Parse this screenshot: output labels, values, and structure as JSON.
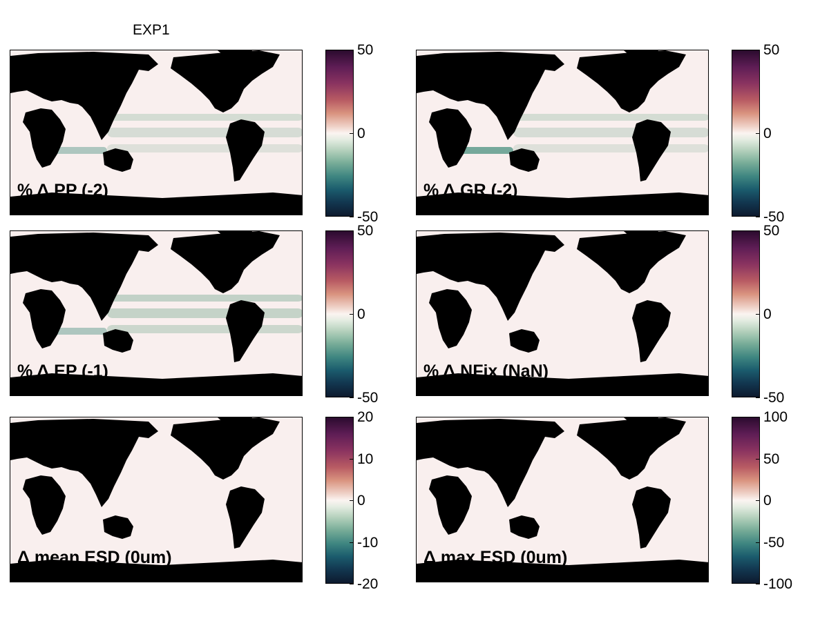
{
  "figure_title": "EXP1",
  "panels": [
    {
      "label": "% Δ PP (-2)",
      "cbar_ticks": [
        "50",
        "0",
        "-50"
      ],
      "cbar_range": [
        -50,
        50
      ]
    },
    {
      "label": "% Δ GR (-2)",
      "cbar_ticks": [
        "50",
        "0",
        "-50"
      ],
      "cbar_range": [
        -50,
        50
      ]
    },
    {
      "label": "% Δ EP (-1)",
      "cbar_ticks": [
        "50",
        "0",
        "-50"
      ],
      "cbar_range": [
        -50,
        50
      ]
    },
    {
      "label": "% Δ NFix (NaN)",
      "cbar_ticks": [
        "50",
        "0",
        "-50"
      ],
      "cbar_range": [
        -50,
        50
      ]
    },
    {
      "label": "Δ mean ESD (0um)",
      "cbar_ticks": [
        "20",
        "10",
        "0",
        "-10",
        "-20"
      ],
      "cbar_range": [
        -20,
        20
      ]
    },
    {
      "label": "Δ max ESD (0um)",
      "cbar_ticks": [
        "100",
        "50",
        "0",
        "-50",
        "-100"
      ],
      "cbar_range": [
        -100,
        100
      ]
    }
  ],
  "chart_data": {
    "type": "heatmap",
    "title": "EXP1",
    "colormap": "diverging: dark green (negative) - white (0) - dark purple (positive)",
    "land_color": "#000000",
    "background_color": "#f9efee",
    "maps": [
      {
        "name": "% Δ PP (-2)",
        "range": [
          -50,
          50
        ],
        "ticks": [
          50,
          0,
          -50
        ]
      },
      {
        "name": "% Δ GR (-2)",
        "range": [
          -50,
          50
        ],
        "ticks": [
          50,
          0,
          -50
        ]
      },
      {
        "name": "% Δ EP (-1)",
        "range": [
          -50,
          50
        ],
        "ticks": [
          50,
          0,
          -50
        ]
      },
      {
        "name": "% Δ NFix (NaN)",
        "range": [
          -50,
          50
        ],
        "ticks": [
          50,
          0,
          -50
        ]
      },
      {
        "name": "Δ mean ESD (0um)",
        "range": [
          -20,
          20
        ],
        "ticks": [
          20,
          10,
          0,
          -10,
          -20
        ]
      },
      {
        "name": "Δ max ESD (0um)",
        "range": [
          -100,
          100
        ],
        "ticks": [
          100,
          50,
          0,
          -50,
          -100
        ]
      }
    ]
  }
}
